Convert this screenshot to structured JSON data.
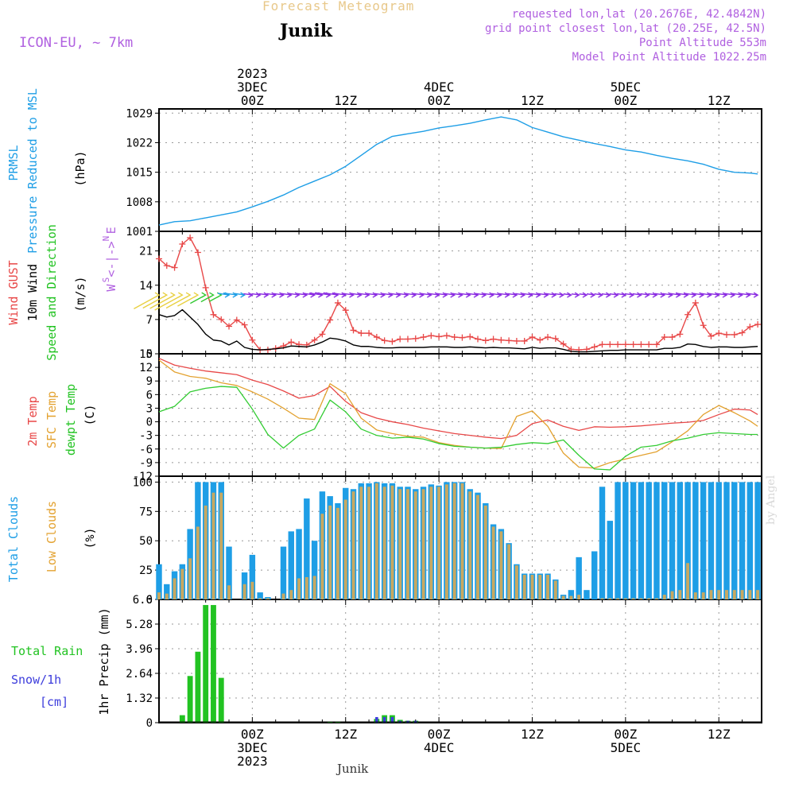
{
  "header": {
    "title": "Forecast Meteogram",
    "location": "Junik",
    "model": "ICON-EU, ~ 7km",
    "requested": "requested lon,lat (20.2676E, 42.4842N)",
    "grid_point": "grid point closest lon,lat (20.25E, 42.5N)",
    "point_altitude": "Point Altitude 553m",
    "model_altitude": "Model Point Altitude 1022.25m",
    "footer_location": "Junik",
    "watermark": "by Angel"
  },
  "time_axis": {
    "top_labels": [
      {
        "hour": 0,
        "lines": [
          "2023",
          "3DEC",
          "00Z"
        ]
      },
      {
        "hour": 12,
        "lines": [
          "12Z"
        ]
      },
      {
        "hour": 24,
        "lines": [
          "4DEC",
          "00Z"
        ]
      },
      {
        "hour": 36,
        "lines": [
          "12Z"
        ]
      },
      {
        "hour": 48,
        "lines": [
          "5DEC",
          "00Z"
        ]
      },
      {
        "hour": 60,
        "lines": [
          "12Z"
        ]
      }
    ],
    "bottom_labels": [
      {
        "hour": 0,
        "lines": [
          "00Z",
          "3DEC",
          "2023"
        ]
      },
      {
        "hour": 12,
        "lines": [
          "12Z"
        ]
      },
      {
        "hour": 24,
        "lines": [
          "00Z",
          "4DEC"
        ]
      },
      {
        "hour": 36,
        "lines": [
          "12Z"
        ]
      },
      {
        "hour": 48,
        "lines": [
          "00Z",
          "5DEC"
        ]
      },
      {
        "hour": 60,
        "lines": [
          "12Z"
        ]
      }
    ]
  },
  "chart_data": [
    {
      "type": "line",
      "panel": "pressure",
      "ylabels": [
        "PRMSL",
        "Pressure Reduced to MSL",
        "(hPa)"
      ],
      "ylim": [
        1001,
        1030
      ],
      "yticks": [
        1001,
        1008,
        1015,
        1022,
        1029
      ],
      "color": "#1e9ee6",
      "x_hours": [
        -12,
        -10,
        -8,
        -6,
        -4,
        -2,
        0,
        2,
        4,
        6,
        8,
        10,
        12,
        14,
        16,
        18,
        20,
        22,
        24,
        26,
        28,
        30,
        32,
        34,
        36,
        38,
        40,
        42,
        44,
        46,
        48,
        50,
        52,
        54,
        56,
        58,
        60,
        62,
        64,
        65
      ],
      "values": [
        1002.5,
        1003.3,
        1003.5,
        1004.2,
        1004.9,
        1005.6,
        1006.8,
        1008.1,
        1009.6,
        1011.4,
        1012.9,
        1014.4,
        1016.4,
        1019.0,
        1021.6,
        1023.5,
        1024.1,
        1024.7,
        1025.5,
        1026.0,
        1026.6,
        1027.4,
        1028.1,
        1027.4,
        1025.6,
        1024.5,
        1023.4,
        1022.6,
        1021.8,
        1021.1,
        1020.3,
        1019.8,
        1019.0,
        1018.3,
        1017.7,
        1016.9,
        1015.7,
        1015.0,
        1014.8,
        1014.6
      ]
    },
    {
      "type": "line",
      "panel": "wind",
      "ylabels": [
        "Wind GUST",
        "10m Wind",
        "Speed and Direction",
        "(m/s)"
      ],
      "compass": [
        "N",
        "W <-|-> E",
        "S"
      ],
      "ylim": [
        0,
        25
      ],
      "yticks": [
        0,
        7,
        14,
        21
      ],
      "x_hours": [
        -12,
        -11,
        -10,
        -9,
        -8,
        -7,
        -6,
        -5,
        -4,
        -3,
        -2,
        -1,
        0,
        1,
        2,
        3,
        4,
        5,
        6,
        7,
        8,
        9,
        10,
        11,
        12,
        13,
        14,
        15,
        16,
        17,
        18,
        19,
        20,
        21,
        22,
        23,
        24,
        25,
        26,
        27,
        28,
        29,
        30,
        31,
        32,
        33,
        34,
        35,
        36,
        37,
        38,
        39,
        40,
        41,
        42,
        43,
        44,
        45,
        46,
        47,
        48,
        49,
        50,
        51,
        52,
        53,
        54,
        55,
        56,
        57,
        58,
        59,
        60,
        61,
        62,
        63,
        64,
        65
      ],
      "series": [
        {
          "name": "Wind GUST",
          "color": "#e84848",
          "values": [
            19.4,
            18.0,
            17.6,
            22.4,
            23.7,
            20.7,
            13.5,
            8.0,
            7.0,
            5.6,
            6.9,
            5.9,
            2.8,
            0.8,
            0.8,
            1.1,
            1.6,
            2.4,
            1.9,
            1.8,
            2.8,
            4.0,
            6.9,
            10.4,
            8.9,
            4.8,
            4.2,
            4.2,
            3.4,
            2.7,
            2.5,
            3.0,
            3.0,
            3.1,
            3.4,
            3.7,
            3.5,
            3.7,
            3.4,
            3.3,
            3.5,
            3.0,
            2.7,
            3.0,
            2.8,
            2.7,
            2.6,
            2.6,
            3.4,
            2.8,
            3.4,
            3.1,
            2.0,
            0.9,
            0.8,
            0.9,
            1.4,
            1.9,
            1.9,
            1.9,
            1.9,
            1.9,
            1.9,
            1.9,
            1.9,
            3.4,
            3.4,
            4.0,
            8.0,
            10.4,
            5.8,
            3.6,
            4.2,
            3.9,
            3.9,
            4.3,
            5.5,
            6.0
          ]
        },
        {
          "name": "10m Wind",
          "color": "#000000",
          "values": [
            8.0,
            7.5,
            7.8,
            9.0,
            7.5,
            6.0,
            4.0,
            2.8,
            2.6,
            1.8,
            2.6,
            1.3,
            0.9,
            0.8,
            0.9,
            1.0,
            1.2,
            1.6,
            1.5,
            1.4,
            1.8,
            2.4,
            3.2,
            3.0,
            2.6,
            1.8,
            1.5,
            1.5,
            1.3,
            1.2,
            1.2,
            1.3,
            1.3,
            1.3,
            1.3,
            1.4,
            1.4,
            1.4,
            1.3,
            1.3,
            1.4,
            1.3,
            1.2,
            1.3,
            1.2,
            1.2,
            1.1,
            1.0,
            1.3,
            1.1,
            1.2,
            1.2,
            0.9,
            0.5,
            0.4,
            0.4,
            0.5,
            0.6,
            0.7,
            0.7,
            0.8,
            0.8,
            0.8,
            0.8,
            0.8,
            1.1,
            1.1,
            1.3,
            2.0,
            1.9,
            1.5,
            1.3,
            1.4,
            1.4,
            1.3,
            1.3,
            1.4,
            1.5
          ]
        }
      ]
    },
    {
      "type": "line",
      "panel": "temperature",
      "ylabels": [
        "2m Temp",
        "SFC Temp",
        "dewpt Temp",
        "(C)"
      ],
      "ylim": [
        -12,
        15
      ],
      "yticks": [
        -12,
        -9,
        -6,
        -3,
        0,
        3,
        6,
        9,
        12,
        15
      ],
      "x_hours": [
        -12,
        -10,
        -8,
        -6,
        -4,
        -2,
        0,
        2,
        4,
        6,
        8,
        10,
        12,
        14,
        16,
        18,
        20,
        22,
        24,
        26,
        28,
        30,
        32,
        34,
        36,
        38,
        40,
        42,
        44,
        46,
        48,
        50,
        52,
        54,
        56,
        58,
        60,
        62,
        64,
        65
      ],
      "series": [
        {
          "name": "2m Temp",
          "color": "#e84848",
          "values": [
            14.0,
            12.5,
            11.8,
            11.2,
            10.8,
            10.4,
            9.2,
            8.2,
            6.8,
            5.2,
            5.8,
            7.8,
            4.5,
            2.0,
            0.8,
            0.0,
            -0.6,
            -1.4,
            -2.0,
            -2.6,
            -3.0,
            -3.4,
            -3.7,
            -3.0,
            -0.4,
            0.4,
            -1.0,
            -1.9,
            -1.1,
            -1.2,
            -1.1,
            -0.9,
            -0.6,
            -0.3,
            -0.1,
            0.3,
            1.6,
            2.8,
            2.6,
            1.6
          ]
        },
        {
          "name": "SFC Temp",
          "color": "#e3a230",
          "values": [
            13.6,
            11.0,
            10.0,
            9.6,
            8.6,
            8.0,
            6.6,
            5.0,
            3.0,
            0.8,
            0.5,
            8.4,
            6.2,
            0.8,
            -1.8,
            -2.6,
            -3.2,
            -3.4,
            -4.6,
            -5.2,
            -5.6,
            -5.8,
            -5.9,
            1.2,
            2.4,
            -1.0,
            -6.9,
            -10.0,
            -10.2,
            -9.0,
            -8.2,
            -7.4,
            -6.6,
            -4.4,
            -2.0,
            1.6,
            3.6,
            2.0,
            0.2,
            -1.0
          ]
        },
        {
          "name": "dewpt Temp",
          "color": "#33cc33",
          "values": [
            2.2,
            3.4,
            6.6,
            7.4,
            7.8,
            7.6,
            2.8,
            -2.8,
            -5.8,
            -3.0,
            -1.6,
            4.8,
            2.2,
            -1.6,
            -3.0,
            -3.6,
            -3.4,
            -3.8,
            -4.8,
            -5.4,
            -5.6,
            -5.8,
            -5.6,
            -5.0,
            -4.6,
            -4.8,
            -4.0,
            -7.4,
            -10.4,
            -10.6,
            -7.6,
            -5.6,
            -5.2,
            -4.2,
            -3.6,
            -2.8,
            -2.4,
            -2.6,
            -2.8,
            -2.8
          ]
        }
      ]
    },
    {
      "type": "bar",
      "panel": "clouds",
      "ylabels": [
        "Total Clouds",
        "Low Clouds",
        "(%)"
      ],
      "ylim": [
        0,
        105
      ],
      "yticks": [
        0,
        25,
        50,
        75,
        100
      ],
      "x_hours": [
        -12,
        -11,
        -10,
        -9,
        -8,
        -7,
        -6,
        -5,
        -4,
        -3,
        -2,
        -1,
        0,
        1,
        2,
        3,
        4,
        5,
        6,
        7,
        8,
        9,
        10,
        11,
        12,
        13,
        14,
        15,
        16,
        17,
        18,
        19,
        20,
        21,
        22,
        23,
        24,
        25,
        26,
        27,
        28,
        29,
        30,
        31,
        32,
        33,
        34,
        35,
        36,
        37,
        38,
        39,
        40,
        41,
        42,
        43,
        44,
        45,
        46,
        47,
        48,
        49,
        50,
        51,
        52,
        53,
        54,
        55,
        56,
        57,
        58,
        59,
        60,
        61,
        62,
        63,
        64,
        65
      ],
      "series": [
        {
          "name": "Total Clouds",
          "color": "#1e9ee6",
          "values": [
            30,
            13,
            24,
            30,
            60,
            100,
            100,
            100,
            100,
            45,
            0,
            23,
            38,
            6,
            2,
            0,
            45,
            58,
            60,
            86,
            50,
            92,
            88,
            82,
            95,
            94,
            99,
            99,
            100,
            99,
            99,
            96,
            96,
            94,
            96,
            98,
            97,
            100,
            100,
            100,
            94,
            91,
            82,
            64,
            60,
            48,
            30,
            22,
            22,
            22,
            22,
            17,
            4,
            8,
            36,
            8,
            41,
            96,
            67,
            100,
            100,
            100,
            100,
            100,
            100,
            100,
            100,
            100,
            100,
            100,
            100,
            100,
            100,
            100,
            100,
            100,
            100,
            100
          ]
        },
        {
          "name": "Low Clouds",
          "color": "#c8a860",
          "values": [
            6,
            5,
            18,
            26,
            35,
            62,
            80,
            91,
            91,
            12,
            0,
            13,
            15,
            1,
            1,
            0,
            5,
            8,
            18,
            19,
            20,
            73,
            80,
            78,
            85,
            92,
            96,
            96,
            99,
            96,
            97,
            94,
            94,
            92,
            94,
            96,
            96,
            98,
            99,
            99,
            92,
            89,
            80,
            62,
            58,
            47,
            29,
            21,
            21,
            21,
            21,
            16,
            3,
            3,
            4,
            0,
            0,
            1,
            1,
            1,
            1,
            1,
            1,
            1,
            1,
            4,
            7,
            8,
            31,
            6,
            6,
            8,
            8,
            8,
            8,
            8,
            8,
            8
          ]
        }
      ]
    },
    {
      "type": "bar",
      "panel": "precip",
      "ylabels": [
        "Total Rain",
        "Snow/1h",
        "[cm]",
        "1hr Precip (mm)"
      ],
      "ylim": [
        0,
        6.6
      ],
      "yticks": [
        0,
        1.32,
        2.64,
        3.96,
        5.28,
        6.6
      ],
      "x_hours": [
        -12,
        -11,
        -10,
        -9,
        -8,
        -7,
        -6,
        -5,
        -4,
        -3,
        -2,
        -1,
        0,
        1,
        2,
        3,
        4,
        5,
        6,
        7,
        8,
        9,
        10,
        11,
        12,
        13,
        14,
        15,
        16,
        17,
        18,
        19,
        20,
        21,
        22,
        23,
        24,
        25,
        26,
        27,
        28,
        29,
        30,
        31,
        32,
        33,
        34,
        35,
        36,
        37,
        38,
        39,
        40,
        41,
        42,
        43,
        44,
        45,
        46,
        47,
        48,
        49,
        50,
        51,
        52,
        53,
        54,
        55,
        56,
        57,
        58,
        59,
        60,
        61,
        62,
        63,
        64,
        65
      ],
      "series": [
        {
          "name": "Total Rain",
          "color": "#22c322",
          "values": [
            0,
            0,
            0,
            0.4,
            2.5,
            3.8,
            6.3,
            6.3,
            2.4,
            0,
            0,
            0,
            0,
            0,
            0,
            0,
            0,
            0,
            0,
            0,
            0,
            0,
            0.05,
            0.05,
            0,
            0,
            0,
            0,
            0.2,
            0.4,
            0.4,
            0.15,
            0.1,
            0.1,
            0,
            0,
            0,
            0,
            0,
            0,
            0,
            0,
            0,
            0,
            0,
            0,
            0,
            0,
            0,
            0,
            0,
            0,
            0,
            0,
            0,
            0,
            0,
            0,
            0,
            0,
            0,
            0,
            0,
            0,
            0,
            0,
            0,
            0,
            0,
            0,
            0,
            0,
            0,
            0,
            0,
            0,
            0,
            0
          ]
        },
        {
          "name": "Snow/1h",
          "color": "#3c3cdc",
          "values": [
            0,
            0,
            0,
            0,
            0,
            0,
            0,
            0,
            0,
            0,
            0,
            0,
            0,
            0,
            0,
            0,
            0,
            0,
            0,
            0,
            0,
            0,
            0,
            0,
            0,
            0,
            0,
            0,
            0.3,
            0.3,
            0.3,
            0.1,
            0.1,
            0.1,
            0,
            0,
            0,
            0,
            0,
            0,
            0,
            0,
            0,
            0,
            0,
            0,
            0,
            0,
            0,
            0,
            0,
            0,
            0,
            0,
            0,
            0,
            0,
            0,
            0,
            0,
            0,
            0,
            0,
            0,
            0,
            0,
            0,
            0,
            0,
            0,
            0,
            0,
            0,
            0,
            0,
            0,
            0,
            0
          ]
        }
      ]
    }
  ]
}
